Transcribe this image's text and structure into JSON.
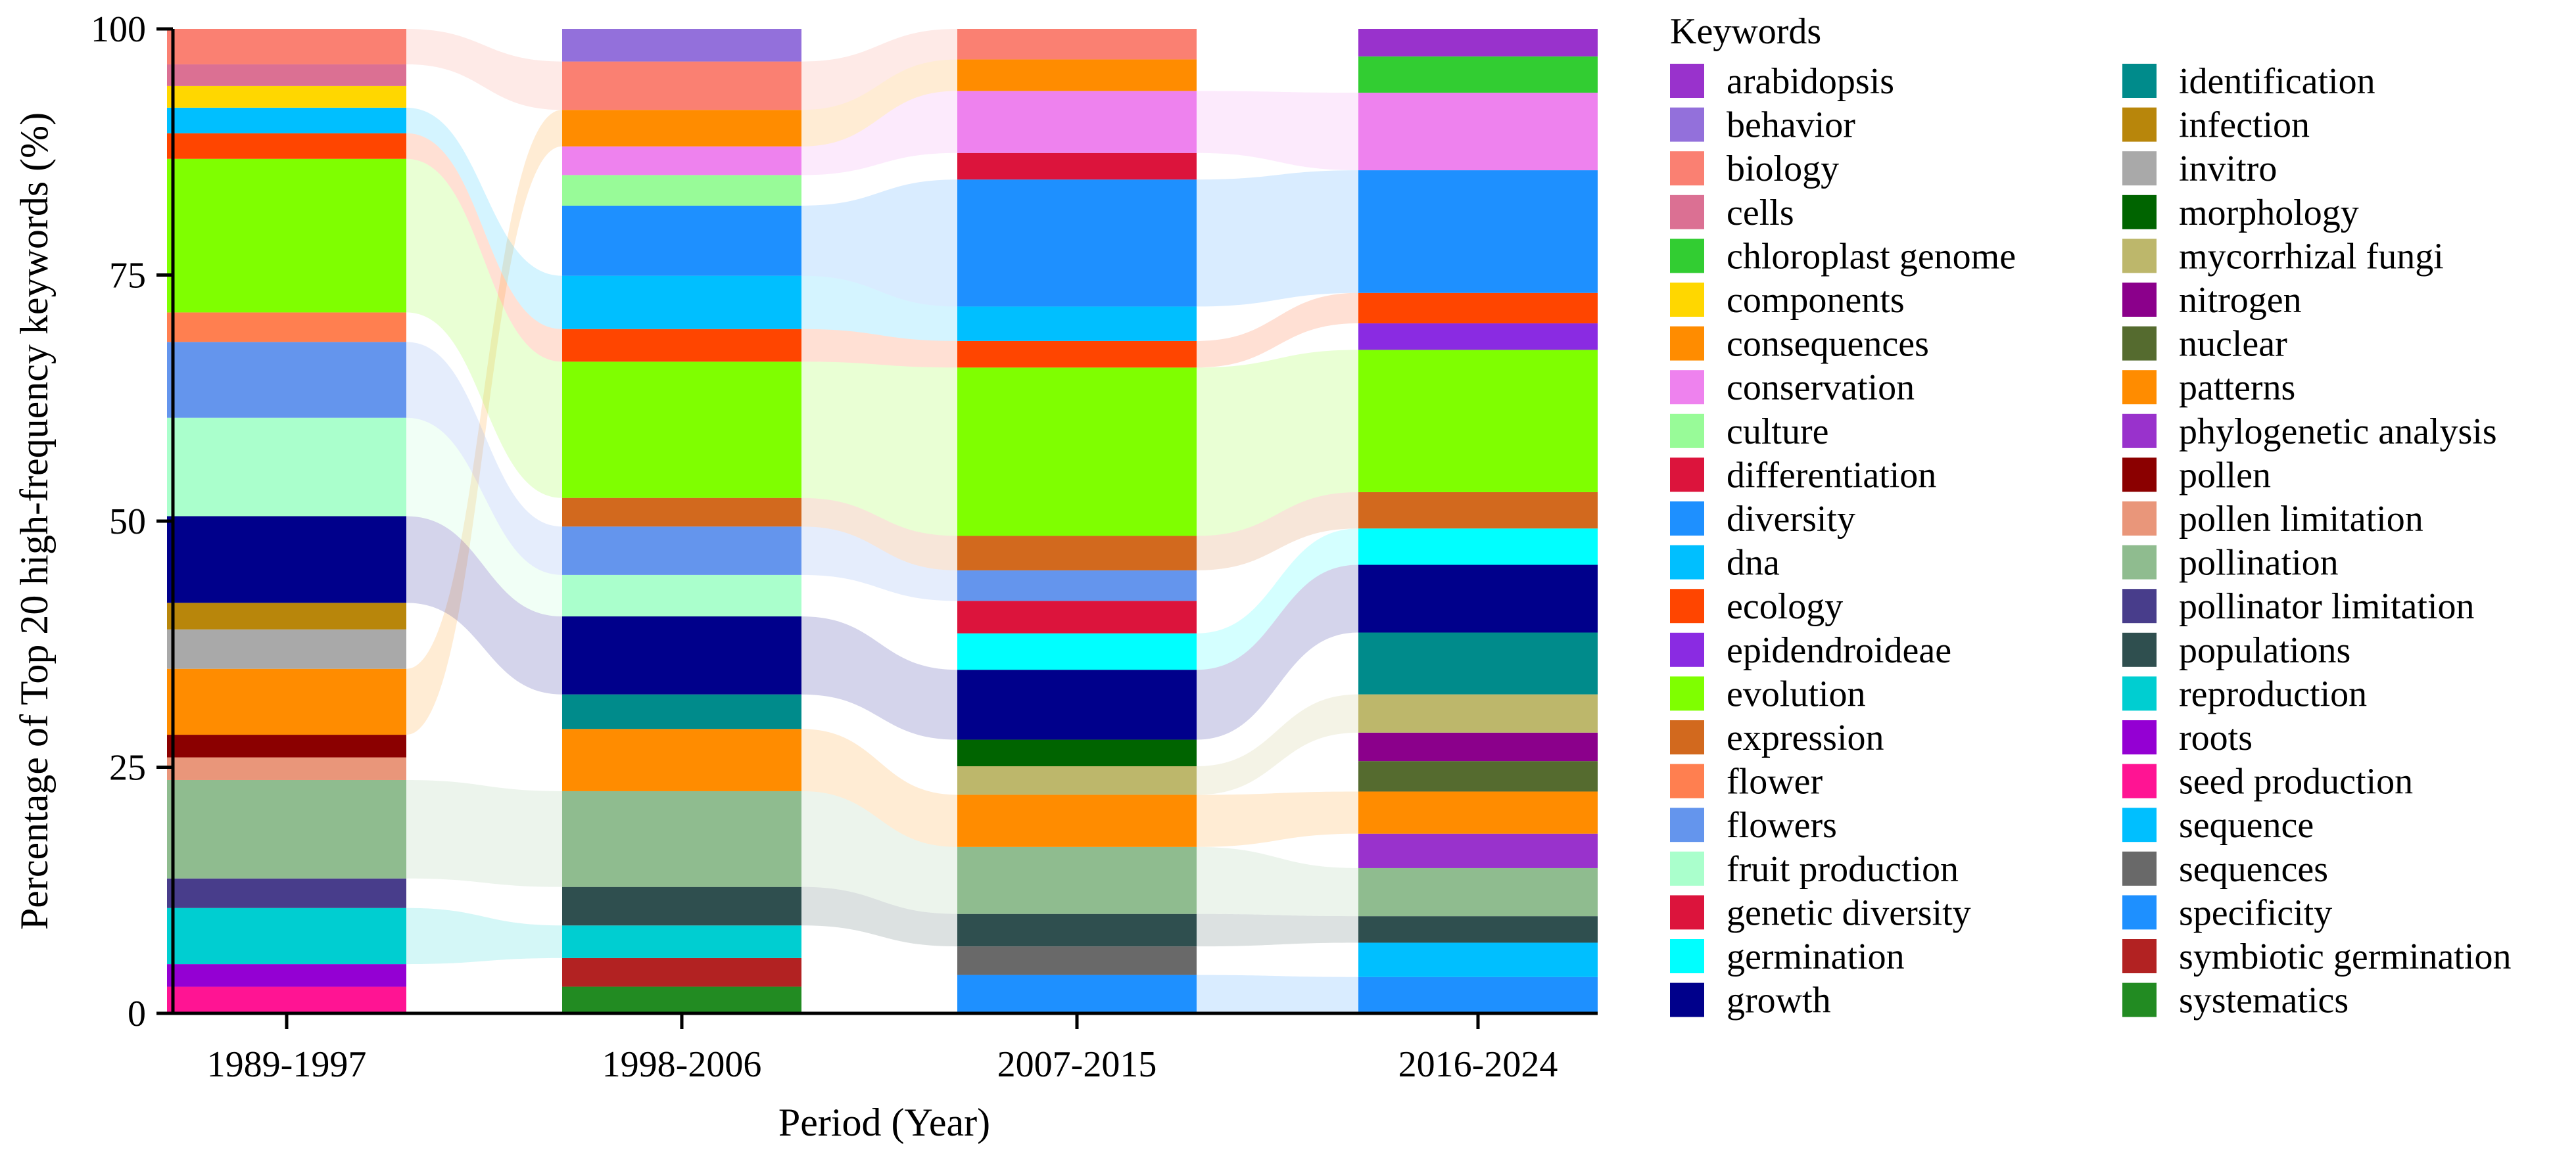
{
  "chart_data": {
    "type": "stacked-bar-alluvial",
    "title": "",
    "xlabel": "Period (Year)",
    "ylabel": "Percentage of Top 20 high-frequency keywords (%)",
    "ylim": [
      0,
      100
    ],
    "yticks": [
      0,
      25,
      50,
      75,
      100
    ],
    "categories": [
      "1989-1997",
      "1998-2006",
      "2007-2015",
      "2016-2024"
    ],
    "legend_title": "Keywords",
    "keywords": [
      {
        "name": "arabidopsis",
        "color": "#9932CC"
      },
      {
        "name": "behavior",
        "color": "#9370DB"
      },
      {
        "name": "biology",
        "color": "#FA8072"
      },
      {
        "name": "cells",
        "color": "#DB7093"
      },
      {
        "name": "chloroplast genome",
        "color": "#32CD32"
      },
      {
        "name": "components",
        "color": "#FFD700"
      },
      {
        "name": "consequences",
        "color": "#FF8C00"
      },
      {
        "name": "conservation",
        "color": "#EE82EE"
      },
      {
        "name": "culture",
        "color": "#98FB98"
      },
      {
        "name": "differentiation",
        "color": "#DC143C"
      },
      {
        "name": "diversity",
        "color": "#1E90FF"
      },
      {
        "name": "dna",
        "color": "#00BFFF"
      },
      {
        "name": "ecology",
        "color": "#FF4500"
      },
      {
        "name": "epidendroideae",
        "color": "#8A2BE2"
      },
      {
        "name": "evolution",
        "color": "#7FFF00"
      },
      {
        "name": "expression",
        "color": "#D2691E"
      },
      {
        "name": "flower",
        "color": "#FF7F50"
      },
      {
        "name": "flowers",
        "color": "#6495ED"
      },
      {
        "name": "fruit production",
        "color": "#AAFFCC"
      },
      {
        "name": "genetic diversity",
        "color": "#DC143C"
      },
      {
        "name": "germination",
        "color": "#00FFFF"
      },
      {
        "name": "growth",
        "color": "#00008B"
      },
      {
        "name": "identification",
        "color": "#008B8B"
      },
      {
        "name": "infection",
        "color": "#B8860B"
      },
      {
        "name": "invitro",
        "color": "#A9A9A9"
      },
      {
        "name": "morphology",
        "color": "#006400"
      },
      {
        "name": "mycorrhizal fungi",
        "color": "#BDB76B"
      },
      {
        "name": "nitrogen",
        "color": "#8B008B"
      },
      {
        "name": "nuclear",
        "color": "#556B2F"
      },
      {
        "name": "patterns",
        "color": "#FF8C00"
      },
      {
        "name": "phylogenetic analysis",
        "color": "#9932CC"
      },
      {
        "name": "pollen",
        "color": "#8B0000"
      },
      {
        "name": "pollen limitation",
        "color": "#E9967A"
      },
      {
        "name": "pollination",
        "color": "#8FBC8F"
      },
      {
        "name": "pollinator limitation",
        "color": "#483D8B"
      },
      {
        "name": "populations",
        "color": "#2F4F4F"
      },
      {
        "name": "reproduction",
        "color": "#00CED1"
      },
      {
        "name": "roots",
        "color": "#9400D3"
      },
      {
        "name": "seed production",
        "color": "#FF1493"
      },
      {
        "name": "sequence",
        "color": "#00BFFF"
      },
      {
        "name": "sequences",
        "color": "#696969"
      },
      {
        "name": "specificity",
        "color": "#1E90FF"
      },
      {
        "name": "symbiotic germination",
        "color": "#B22222"
      },
      {
        "name": "systematics",
        "color": "#228B22"
      }
    ],
    "stacks": [
      {
        "period": "1989-1997",
        "segments": [
          {
            "keyword": "seed production",
            "value": 2.7
          },
          {
            "keyword": "roots",
            "value": 2.3
          },
          {
            "keyword": "reproduction",
            "value": 5.7
          },
          {
            "keyword": "pollinator limitation",
            "value": 3.0
          },
          {
            "keyword": "pollination",
            "value": 10.0
          },
          {
            "keyword": "pollen limitation",
            "value": 2.3
          },
          {
            "keyword": "pollen",
            "value": 2.3
          },
          {
            "keyword": "consequences",
            "value": 6.7
          },
          {
            "keyword": "invitro",
            "value": 4.0
          },
          {
            "keyword": "infection",
            "value": 2.7
          },
          {
            "keyword": "growth",
            "value": 8.8
          },
          {
            "keyword": "fruit production",
            "value": 10.0
          },
          {
            "keyword": "flowers",
            "value": 7.7
          },
          {
            "keyword": "flower",
            "value": 3.0
          },
          {
            "keyword": "evolution",
            "value": 15.6
          },
          {
            "keyword": "ecology",
            "value": 2.6
          },
          {
            "keyword": "dna",
            "value": 2.6
          },
          {
            "keyword": "components",
            "value": 2.2
          },
          {
            "keyword": "cells",
            "value": 2.2
          },
          {
            "keyword": "biology",
            "value": 3.6
          }
        ]
      },
      {
        "period": "1998-2006",
        "segments": [
          {
            "keyword": "systematics",
            "value": 2.7
          },
          {
            "keyword": "symbiotic germination",
            "value": 2.9
          },
          {
            "keyword": "reproduction",
            "value": 3.3
          },
          {
            "keyword": "populations",
            "value": 3.9
          },
          {
            "keyword": "pollination",
            "value": 9.7
          },
          {
            "keyword": "patterns",
            "value": 6.3
          },
          {
            "keyword": "identification",
            "value": 3.5
          },
          {
            "keyword": "growth",
            "value": 7.9
          },
          {
            "keyword": "fruit production",
            "value": 4.2
          },
          {
            "keyword": "flowers",
            "value": 4.9
          },
          {
            "keyword": "expression",
            "value": 2.9
          },
          {
            "keyword": "evolution",
            "value": 13.8
          },
          {
            "keyword": "ecology",
            "value": 3.3
          },
          {
            "keyword": "dna",
            "value": 5.4
          },
          {
            "keyword": "diversity",
            "value": 7.1
          },
          {
            "keyword": "culture",
            "value": 3.1
          },
          {
            "keyword": "conservation",
            "value": 2.9
          },
          {
            "keyword": "consequences",
            "value": 3.7
          },
          {
            "keyword": "biology",
            "value": 4.9
          },
          {
            "keyword": "behavior",
            "value": 3.3
          }
        ]
      },
      {
        "period": "2007-2015",
        "segments": [
          {
            "keyword": "specificity",
            "value": 3.9
          },
          {
            "keyword": "sequences",
            "value": 2.9
          },
          {
            "keyword": "populations",
            "value": 3.3
          },
          {
            "keyword": "pollination",
            "value": 6.8
          },
          {
            "keyword": "patterns",
            "value": 5.3
          },
          {
            "keyword": "mycorrhizal fungi",
            "value": 2.9
          },
          {
            "keyword": "morphology",
            "value": 2.7
          },
          {
            "keyword": "growth",
            "value": 7.1
          },
          {
            "keyword": "germination",
            "value": 3.7
          },
          {
            "keyword": "genetic diversity",
            "value": 3.3
          },
          {
            "keyword": "flowers",
            "value": 3.1
          },
          {
            "keyword": "expression",
            "value": 3.5
          },
          {
            "keyword": "evolution",
            "value": 17.1
          },
          {
            "keyword": "ecology",
            "value": 2.7
          },
          {
            "keyword": "dna",
            "value": 3.5
          },
          {
            "keyword": "diversity",
            "value": 12.9
          },
          {
            "keyword": "differentiation",
            "value": 2.7
          },
          {
            "keyword": "conservation",
            "value": 6.3
          },
          {
            "keyword": "consequences",
            "value": 3.2
          },
          {
            "keyword": "biology",
            "value": 3.1
          }
        ]
      },
      {
        "period": "2016-2024",
        "segments": [
          {
            "keyword": "specificity",
            "value": 3.7
          },
          {
            "keyword": "sequence",
            "value": 3.5
          },
          {
            "keyword": "populations",
            "value": 2.7
          },
          {
            "keyword": "pollination",
            "value": 4.9
          },
          {
            "keyword": "phylogenetic analysis",
            "value": 3.5
          },
          {
            "keyword": "patterns",
            "value": 4.3
          },
          {
            "keyword": "nuclear",
            "value": 3.1
          },
          {
            "keyword": "nitrogen",
            "value": 2.9
          },
          {
            "keyword": "mycorrhizal fungi",
            "value": 3.9
          },
          {
            "keyword": "identification",
            "value": 6.3
          },
          {
            "keyword": "growth",
            "value": 6.9
          },
          {
            "keyword": "germination",
            "value": 3.7
          },
          {
            "keyword": "expression",
            "value": 3.7
          },
          {
            "keyword": "evolution",
            "value": 14.5
          },
          {
            "keyword": "epidendroideae",
            "value": 2.7
          },
          {
            "keyword": "ecology",
            "value": 3.1
          },
          {
            "keyword": "diversity",
            "value": 12.5
          },
          {
            "keyword": "conservation",
            "value": 7.9
          },
          {
            "keyword": "chloroplast genome",
            "value": 3.7
          },
          {
            "keyword": "arabidopsis",
            "value": 2.8
          }
        ]
      }
    ]
  }
}
